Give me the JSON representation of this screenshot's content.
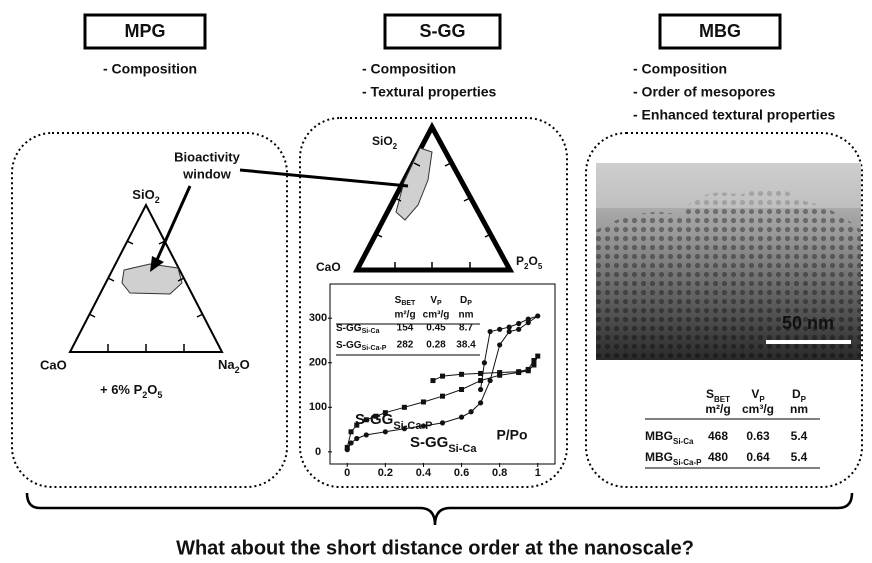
{
  "panels": [
    {
      "title": "MPG",
      "bullets": [
        "- Composition"
      ],
      "ternary": {
        "top": [
          "SiO",
          "2"
        ],
        "left": "CaO",
        "right": [
          "Na",
          "2",
          "O"
        ]
      },
      "note": [
        "+ 6% P",
        "2",
        "O",
        "5"
      ],
      "callout": [
        "Bioactivity",
        "window"
      ]
    },
    {
      "title": "S-GG",
      "bullets": [
        "- Composition",
        "- Textural properties"
      ],
      "ternary": {
        "top": [
          "SiO",
          "2"
        ],
        "left": "CaO",
        "right": [
          "P",
          "2",
          "O",
          "5"
        ]
      },
      "isotherm": {
        "type": "scatter",
        "xlim": [
          -0.08,
          1.08
        ],
        "ylim": [
          -25,
          370
        ],
        "xticks": [
          0,
          0.2,
          0.4,
          0.6,
          0.8,
          1
        ],
        "yticks": [
          0,
          100,
          200,
          300
        ],
        "x_label": "P/Po",
        "series": [
          {
            "name": [
              "S-GG",
              "Si-Ca-P"
            ],
            "color": "#111111",
            "marker": "square",
            "x": [
              0,
              0.02,
              0.05,
              0.1,
              0.15,
              0.2,
              0.3,
              0.4,
              0.5,
              0.6,
              0.7,
              0.8,
              0.9,
              0.95,
              0.98,
              1,
              0.98,
              0.95,
              0.9,
              0.8,
              0.7,
              0.6,
              0.5,
              0.45
            ],
            "values": [
              10,
              45,
              60,
              72,
              80,
              88,
              100,
              112,
              125,
              140,
              160,
              172,
              178,
              182,
              195,
              215,
              205,
              185,
              180,
              178,
              176,
              174,
              170,
              160
            ]
          },
          {
            "name": [
              "S-GG",
              "Si-Ca"
            ],
            "color": "#111111",
            "marker": "circle",
            "x": [
              0,
              0.02,
              0.05,
              0.1,
              0.2,
              0.3,
              0.4,
              0.5,
              0.6,
              0.65,
              0.7,
              0.75,
              0.8,
              0.85,
              0.9,
              0.95,
              1,
              0.95,
              0.9,
              0.85,
              0.8,
              0.75,
              0.72,
              0.7
            ],
            "values": [
              5,
              20,
              30,
              38,
              45,
              52,
              58,
              65,
              78,
              90,
              110,
              160,
              240,
              270,
              275,
              290,
              305,
              298,
              288,
              280,
              275,
              270,
              200,
              140
            ]
          }
        ],
        "table": {
          "columns": [
            {
              "symbol": [
                "S",
                "BET"
              ],
              "unit": "m²/g"
            },
            {
              "symbol": [
                "V",
                "P"
              ],
              "unit": "cm³/g"
            },
            {
              "symbol": [
                "D",
                "P"
              ],
              "unit": "nm"
            }
          ],
          "rows": [
            {
              "label": [
                "S-GG",
                "Si-Ca"
              ],
              "values": [
                154,
                0.45,
                8.7
              ]
            },
            {
              "label": [
                "S-GG",
                "Si-Ca-P"
              ],
              "values": [
                282,
                0.28,
                38.4
              ]
            }
          ]
        }
      }
    },
    {
      "title": "MBG",
      "bullets": [
        "- Composition",
        "- Order of mesopores",
        "- Enhanced textural properties"
      ],
      "image": {
        "scale_bar": "50 nm"
      },
      "table": {
        "columns": [
          {
            "symbol": [
              "S",
              "BET"
            ],
            "unit": "m²/g"
          },
          {
            "symbol": [
              "V",
              "P"
            ],
            "unit": "cm³/g"
          },
          {
            "symbol": [
              "D",
              "P"
            ],
            "unit": "nm"
          }
        ],
        "rows": [
          {
            "label": [
              "MBG",
              "Si-Ca"
            ],
            "values": [
              468,
              0.63,
              5.4
            ]
          },
          {
            "label": [
              "MBG",
              "Si-Ca-P"
            ],
            "values": [
              480,
              0.64,
              5.4
            ]
          }
        ]
      }
    }
  ],
  "question": "What about the short distance order at the nanoscale?"
}
